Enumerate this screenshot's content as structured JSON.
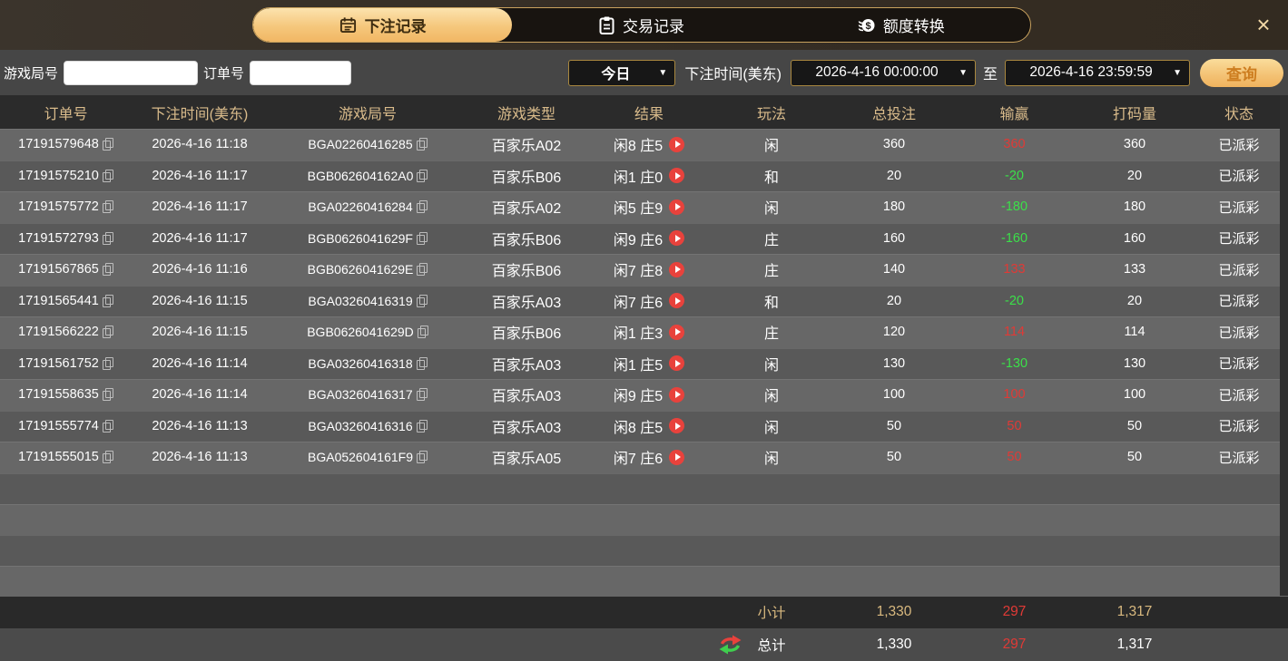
{
  "tabs": {
    "bet_records": "下注记录",
    "transaction_records": "交易记录",
    "quota_transfer": "额度转换"
  },
  "header": {
    "close_symbol": "×"
  },
  "filters": {
    "game_round_label": "游戏局号",
    "order_no_label": "订单号",
    "game_round_value": "",
    "order_no_value": "",
    "quick_range_value": "今日",
    "bet_time_label": "下注时间(美东)",
    "start_time": "2026-4-16 00:00:00",
    "to_label": "至",
    "end_time": "2026-4-16 23:59:59",
    "search_button": "查询",
    "dropdown_arrow": "▼"
  },
  "table": {
    "headers": [
      "订单号",
      "下注时间(美东)",
      "游戏局号",
      "游戏类型",
      "结果",
      "玩法",
      "总投注",
      "输赢",
      "打码量",
      "状态"
    ],
    "rows": [
      {
        "order": "17191579648",
        "time": "2026-4-16 11:18",
        "round": "BGA02260416285",
        "game": "百家乐A02",
        "result": "闲8 庄5",
        "play": "闲",
        "bet": "360",
        "win": "360",
        "turnover": "360",
        "status": "已派彩"
      },
      {
        "order": "17191575210",
        "time": "2026-4-16 11:17",
        "round": "BGB062604162A0",
        "game": "百家乐B06",
        "result": "闲1 庄0",
        "play": "和",
        "bet": "20",
        "win": "-20",
        "turnover": "20",
        "status": "已派彩"
      },
      {
        "order": "17191575772",
        "time": "2026-4-16 11:17",
        "round": "BGA02260416284",
        "game": "百家乐A02",
        "result": "闲5 庄9",
        "play": "闲",
        "bet": "180",
        "win": "-180",
        "turnover": "180",
        "status": "已派彩"
      },
      {
        "order": "17191572793",
        "time": "2026-4-16 11:17",
        "round": "BGB0626041629F",
        "game": "百家乐B06",
        "result": "闲9 庄6",
        "play": "庄",
        "bet": "160",
        "win": "-160",
        "turnover": "160",
        "status": "已派彩"
      },
      {
        "order": "17191567865",
        "time": "2026-4-16 11:16",
        "round": "BGB0626041629E",
        "game": "百家乐B06",
        "result": "闲7 庄8",
        "play": "庄",
        "bet": "140",
        "win": "133",
        "turnover": "133",
        "status": "已派彩"
      },
      {
        "order": "17191565441",
        "time": "2026-4-16 11:15",
        "round": "BGA03260416319",
        "game": "百家乐A03",
        "result": "闲7 庄6",
        "play": "和",
        "bet": "20",
        "win": "-20",
        "turnover": "20",
        "status": "已派彩"
      },
      {
        "order": "17191566222",
        "time": "2026-4-16 11:15",
        "round": "BGB0626041629D",
        "game": "百家乐B06",
        "result": "闲1 庄3",
        "play": "庄",
        "bet": "120",
        "win": "114",
        "turnover": "114",
        "status": "已派彩"
      },
      {
        "order": "17191561752",
        "time": "2026-4-16 11:14",
        "round": "BGA03260416318",
        "game": "百家乐A03",
        "result": "闲1 庄5",
        "play": "闲",
        "bet": "130",
        "win": "-130",
        "turnover": "130",
        "status": "已派彩"
      },
      {
        "order": "17191558635",
        "time": "2026-4-16 11:14",
        "round": "BGA03260416317",
        "game": "百家乐A03",
        "result": "闲9 庄5",
        "play": "闲",
        "bet": "100",
        "win": "100",
        "turnover": "100",
        "status": "已派彩"
      },
      {
        "order": "17191555774",
        "time": "2026-4-16 11:13",
        "round": "BGA03260416316",
        "game": "百家乐A03",
        "result": "闲8 庄5",
        "play": "闲",
        "bet": "50",
        "win": "50",
        "turnover": "50",
        "status": "已派彩"
      },
      {
        "order": "17191555015",
        "time": "2026-4-16 11:13",
        "round": "BGA052604161F9",
        "game": "百家乐A05",
        "result": "闲7 庄6",
        "play": "闲",
        "bet": "50",
        "win": "50",
        "turnover": "50",
        "status": "已派彩"
      }
    ],
    "subtotal": {
      "label": "小计",
      "bet": "1,330",
      "win": "297",
      "turnover": "1,317"
    },
    "total": {
      "label": "总计",
      "bet": "1,330",
      "win": "297",
      "turnover": "1,317"
    }
  },
  "colors": {
    "accent_gold": "#f1b764",
    "tab_border_gold": "#c9a25e",
    "win_red": "#e03a36",
    "loss_green": "#3be049",
    "header_text_tan": "#d9bb8b"
  }
}
